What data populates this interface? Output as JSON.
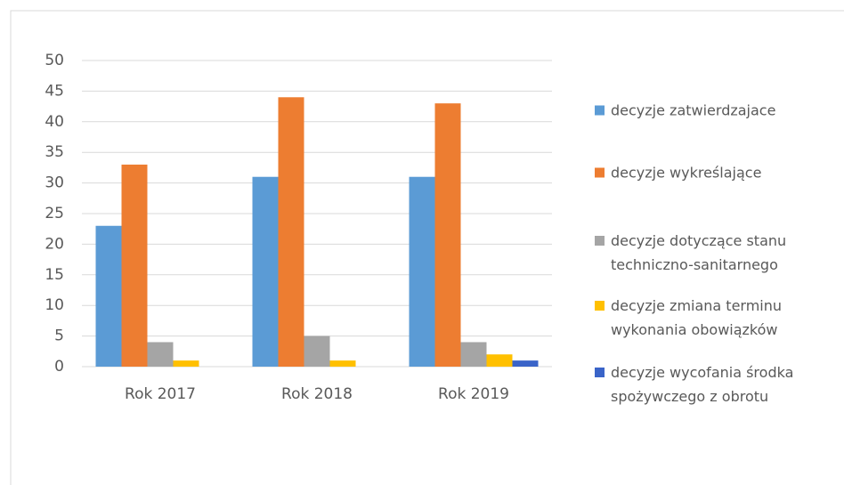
{
  "chart_data": {
    "type": "bar",
    "categories": [
      "Rok 2017",
      "Rok 2018",
      "Rok 2019"
    ],
    "series": [
      {
        "name": "decyzje zatwierdzajace",
        "color": "#5b9bd5",
        "values": [
          23,
          31,
          31
        ]
      },
      {
        "name": "decyzje wykreślające",
        "color": "#ed7d31",
        "values": [
          33,
          44,
          43
        ]
      },
      {
        "name": "decyzje dotyczące stanu techniczno-sanitarnego",
        "color": "#a5a5a5",
        "values": [
          4,
          5,
          4
        ]
      },
      {
        "name": "decyzje zmiana terminu wykonania obowiązków",
        "color": "#ffc000",
        "values": [
          1,
          1,
          2
        ]
      },
      {
        "name": "decyzje wycofania środka spożywczego z obrotu",
        "color": "#3a64c8",
        "values": [
          0,
          0,
          1
        ]
      }
    ],
    "ylim": [
      0,
      50
    ],
    "yticks": [
      0,
      5,
      10,
      15,
      20,
      25,
      30,
      35,
      40,
      45,
      50
    ],
    "grid": true,
    "legend": "right"
  }
}
